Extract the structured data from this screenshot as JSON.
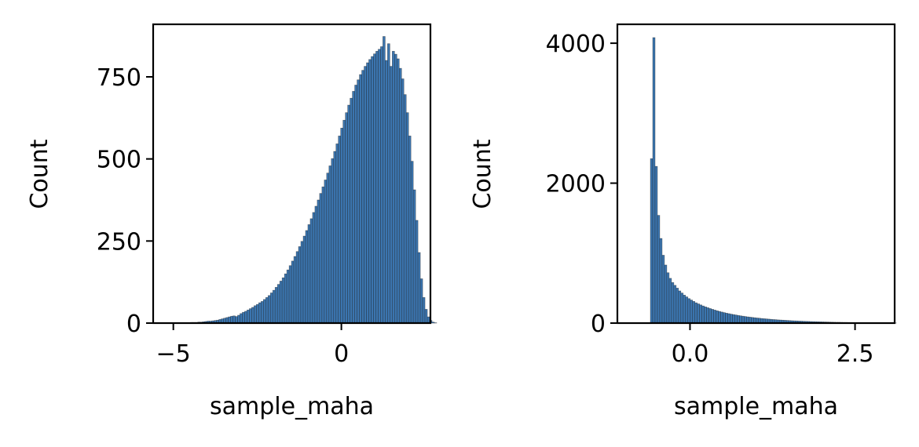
{
  "chart_data": [
    {
      "type": "bar",
      "title": "",
      "xlabel": "sample_maha",
      "ylabel": "Count",
      "xlim": [
        -5.6,
        2.65
      ],
      "ylim": [
        0,
        910
      ],
      "xticks": [
        {
          "value": -5,
          "label": "−5"
        },
        {
          "value": 0,
          "label": "0"
        }
      ],
      "yticks": [
        {
          "value": 0,
          "label": "0"
        },
        {
          "value": 250,
          "label": "250"
        },
        {
          "value": 500,
          "label": "500"
        },
        {
          "value": 750,
          "label": "750"
        }
      ],
      "bin_start": -4.9,
      "bin_width": 0.0697,
      "values": [
        1,
        1,
        1,
        1,
        1,
        1,
        2,
        2,
        2,
        3,
        3,
        4,
        5,
        6,
        6,
        7,
        8,
        9,
        11,
        13,
        15,
        17,
        19,
        21,
        22,
        20,
        24,
        29,
        33,
        36,
        40,
        44,
        48,
        53,
        57,
        62,
        66,
        72,
        78,
        84,
        92,
        100,
        109,
        118,
        128,
        138,
        150,
        162,
        175,
        189,
        203,
        218,
        233,
        249,
        265,
        282,
        300,
        318,
        337,
        356,
        375,
        395,
        415,
        436,
        457,
        479,
        501,
        523,
        546,
        570,
        594,
        618,
        641,
        664,
        685,
        706,
        725,
        741,
        757,
        770,
        782,
        793,
        803,
        812,
        820,
        828,
        834,
        842,
        873,
        800,
        851,
        782,
        828,
        819,
        805,
        776,
        744,
        696,
        641,
        570,
        493,
        406,
        313,
        215,
        135,
        78,
        42,
        19,
        8,
        3,
        1
      ],
      "bar_color": "#3b75af",
      "edge_color": "#1a1a1a"
    },
    {
      "type": "bar",
      "title": "",
      "xlabel": "sample_maha",
      "ylabel": "Count",
      "xlim": [
        -1.1,
        3.1
      ],
      "ylim": [
        0,
        4270
      ],
      "xticks": [
        {
          "value": 0,
          "label": "0.0"
        },
        {
          "value": 2.5,
          "label": "2.5"
        }
      ],
      "yticks": [
        {
          "value": 0,
          "label": "0"
        },
        {
          "value": 2000,
          "label": "2000"
        },
        {
          "value": 4000,
          "label": "4000"
        }
      ],
      "bin_start": -0.6,
      "bin_width": 0.0355,
      "values": [
        2350,
        4080,
        2240,
        1540,
        1210,
        970,
        830,
        720,
        640,
        580,
        540,
        500,
        460,
        430,
        400,
        375,
        350,
        330,
        310,
        290,
        275,
        260,
        245,
        232,
        220,
        208,
        197,
        186,
        176,
        167,
        158,
        150,
        142,
        135,
        128,
        122,
        116,
        110,
        104,
        99,
        94,
        89,
        85,
        81,
        77,
        73,
        70,
        66,
        63,
        60,
        57,
        54,
        51,
        49,
        46,
        44,
        42,
        40,
        38,
        36,
        34,
        32,
        31,
        29,
        28,
        26,
        25,
        24,
        22,
        21,
        20,
        19,
        18,
        17,
        16,
        15,
        14,
        13,
        12,
        11,
        11,
        10,
        9,
        9,
        8,
        8,
        7,
        7,
        6,
        6,
        5,
        5,
        5,
        4,
        4,
        4,
        3,
        3,
        3,
        3,
        2,
        2,
        2,
        2,
        2
      ],
      "bar_color": "#3b75af",
      "edge_color": "#1a1a1a"
    }
  ]
}
